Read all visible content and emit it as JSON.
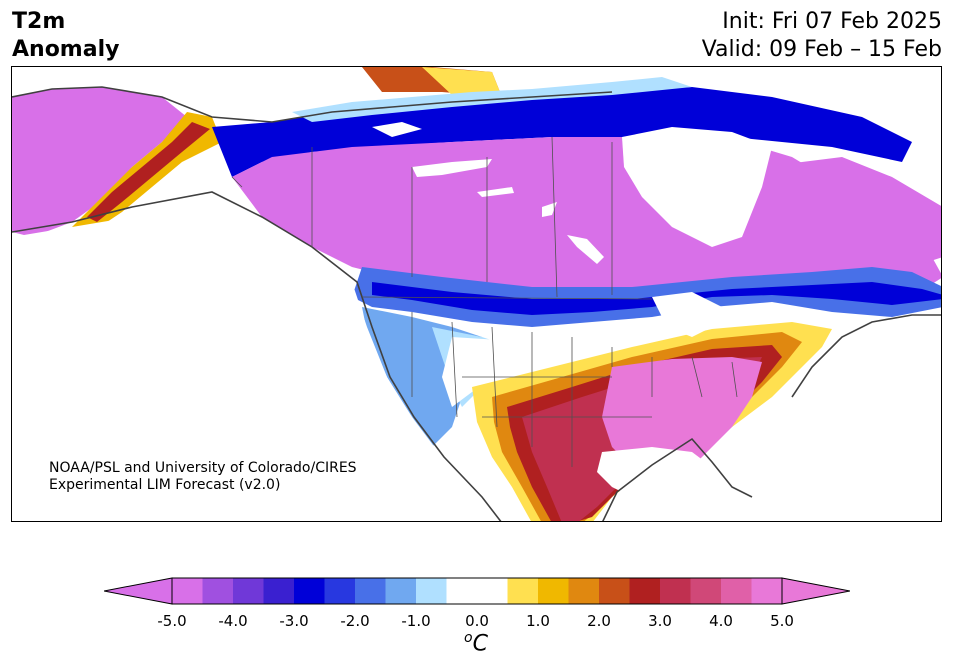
{
  "title": {
    "left_line1": "T2m",
    "left_line2": "Anomaly",
    "init": "Init: Fri 07 Feb 2025",
    "valid": "Valid: 09 Feb – 15 Feb"
  },
  "credit": {
    "line1": "NOAA/PSL and University of Colorado/CIRES",
    "line2": "Experimental LIM Forecast (v2.0)"
  },
  "colorbar": {
    "colors": [
      "#d870e8",
      "#a050e0",
      "#7038d8",
      "#3a20d0",
      "#0000d8",
      "#2838e0",
      "#4870e8",
      "#70a8f0",
      "#b0e0ff",
      "#ffffff",
      "#ffffff",
      "#ffe050",
      "#f0b800",
      "#e08810",
      "#c85018",
      "#b02020",
      "#c03050",
      "#d04878",
      "#e060a8",
      "#e878d8"
    ],
    "low_end_color": "#d870e8",
    "high_end_color": "#e878d8",
    "tick_labels": [
      "-5.0",
      "-4.0",
      "-3.0",
      "-2.0",
      "-1.0",
      "0.0",
      "1.0",
      "2.0",
      "3.0",
      "4.0",
      "5.0"
    ],
    "units_base": "C",
    "units_sup": "o"
  },
  "map_colors": {
    "magenta": "#d870e8",
    "pink": "#e878d8",
    "violet": "#7038d8",
    "blue": "#0000d8",
    "midblue": "#4870e8",
    "lightblue": "#70a8f0",
    "paleblue": "#b0e0ff",
    "yellow": "#ffe050",
    "gold": "#f0b800",
    "orange": "#e08810",
    "rust": "#c85018",
    "red": "#b02020",
    "rose": "#c03050",
    "deeppink": "#d04878"
  }
}
